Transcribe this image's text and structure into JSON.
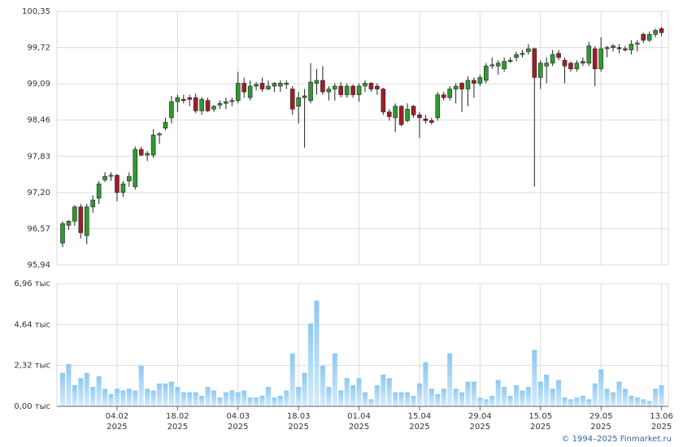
{
  "chart_data": [
    {
      "type": "candlestick",
      "categories": [
        null,
        null,
        null,
        null,
        null,
        null,
        null,
        null,
        null,
        "04.02\n2025",
        null,
        null,
        null,
        null,
        null,
        null,
        null,
        null,
        null,
        "18.02\n2025",
        null,
        null,
        null,
        null,
        null,
        null,
        null,
        null,
        null,
        "04.03\n2025",
        null,
        null,
        null,
        null,
        null,
        null,
        null,
        null,
        null,
        "18.03\n2025",
        null,
        null,
        null,
        null,
        null,
        null,
        null,
        null,
        null,
        "01.04\n2025",
        null,
        null,
        null,
        null,
        null,
        null,
        null,
        null,
        null,
        "15.04\n2025",
        null,
        null,
        null,
        null,
        null,
        null,
        null,
        null,
        null,
        "29.04\n2025",
        null,
        null,
        null,
        null,
        null,
        null,
        null,
        null,
        null,
        "15.05\n2025",
        null,
        null,
        null,
        null,
        null,
        null,
        null,
        null,
        null,
        "29.05\n2025",
        null,
        null,
        null,
        null,
        null,
        null,
        null,
        null,
        null,
        "13.06\n2025"
      ],
      "open": [
        96.32,
        96.63,
        96.7,
        96.95,
        96.45,
        96.95,
        97.1,
        97.42,
        97.48,
        97.5,
        97.2,
        97.4,
        97.3,
        97.95,
        97.85,
        97.85,
        98.2,
        98.32,
        98.5,
        98.78,
        98.82,
        98.85,
        98.85,
        98.62,
        98.8,
        98.65,
        98.72,
        98.75,
        98.78,
        98.8,
        99.1,
        98.85,
        99.05,
        99.1,
        99.0,
        99.05,
        99.05,
        99.08,
        99.0,
        98.7,
        98.85,
        98.8,
        99.1,
        99.15,
        98.95,
        99.0,
        99.05,
        98.9,
        99.05,
        98.9,
        99.05,
        99.1,
        99.05,
        99.0,
        98.6,
        98.5,
        98.7,
        98.45,
        98.7,
        98.55,
        98.48,
        98.45,
        98.5,
        98.9,
        98.85,
        99.0,
        99.1,
        99.0,
        99.15,
        99.1,
        99.15,
        99.4,
        99.4,
        99.35,
        99.48,
        99.55,
        99.6,
        99.65,
        99.7,
        99.2,
        99.4,
        99.45,
        99.62,
        99.5,
        99.45,
        99.35,
        99.45,
        99.45,
        99.7,
        99.35,
        99.7,
        99.72,
        99.72,
        99.7,
        99.68,
        99.78,
        99.95,
        99.85,
        99.95,
        100.05
      ],
      "high": [
        96.7,
        96.72,
        96.98,
        97.0,
        97.0,
        97.15,
        97.4,
        97.55,
        97.55,
        97.52,
        97.4,
        97.55,
        98.0,
        98.0,
        97.92,
        98.3,
        98.25,
        98.5,
        98.88,
        98.9,
        98.9,
        98.9,
        98.92,
        98.86,
        98.85,
        98.72,
        98.8,
        98.85,
        98.85,
        99.3,
        99.2,
        99.15,
        99.12,
        99.2,
        99.15,
        99.12,
        99.15,
        99.15,
        99.05,
        98.95,
        99.0,
        99.45,
        99.35,
        99.4,
        99.05,
        99.1,
        99.12,
        99.1,
        99.08,
        99.1,
        99.15,
        99.12,
        99.1,
        99.02,
        98.65,
        98.75,
        98.72,
        98.75,
        98.72,
        98.6,
        98.55,
        98.5,
        98.95,
        98.95,
        99.05,
        99.1,
        99.12,
        99.22,
        99.2,
        99.25,
        99.45,
        99.55,
        99.5,
        99.55,
        99.55,
        99.65,
        99.68,
        99.78,
        99.72,
        99.5,
        99.55,
        99.68,
        99.68,
        99.55,
        99.48,
        99.5,
        99.55,
        99.82,
        99.75,
        99.9,
        99.75,
        99.78,
        99.78,
        99.75,
        99.85,
        99.85,
        99.98,
        100.0,
        100.05,
        100.08
      ],
      "low": [
        96.25,
        96.55,
        96.62,
        96.4,
        96.3,
        96.85,
        97.0,
        97.38,
        97.4,
        97.05,
        97.12,
        97.3,
        97.25,
        97.83,
        97.75,
        97.8,
        98.05,
        98.28,
        98.4,
        98.6,
        98.75,
        98.7,
        98.58,
        98.55,
        98.6,
        98.6,
        98.65,
        98.65,
        98.7,
        98.75,
        98.85,
        98.8,
        98.98,
        98.95,
        98.98,
        98.95,
        98.95,
        99.0,
        98.55,
        98.4,
        97.98,
        98.75,
        98.9,
        98.9,
        98.8,
        98.8,
        98.85,
        98.85,
        98.85,
        98.78,
        98.95,
        98.95,
        98.9,
        98.55,
        98.45,
        98.25,
        98.35,
        98.42,
        98.5,
        98.15,
        98.4,
        98.38,
        98.45,
        98.8,
        98.8,
        98.75,
        98.6,
        98.7,
        98.85,
        99.05,
        99.1,
        99.35,
        99.25,
        99.3,
        99.45,
        99.48,
        99.55,
        99.6,
        97.3,
        99.0,
        99.1,
        99.4,
        99.5,
        99.1,
        99.3,
        99.3,
        99.4,
        99.4,
        99.05,
        99.3,
        99.55,
        99.65,
        99.62,
        99.65,
        99.6,
        99.65,
        99.8,
        99.82,
        99.9,
        99.92
      ],
      "close": [
        96.66,
        96.7,
        96.95,
        96.5,
        96.95,
        97.07,
        97.35,
        97.48,
        97.5,
        97.2,
        97.35,
        97.48,
        97.95,
        97.85,
        97.88,
        98.2,
        98.22,
        98.42,
        98.78,
        98.85,
        98.8,
        98.82,
        98.62,
        98.82,
        98.62,
        98.7,
        98.75,
        98.78,
        98.8,
        99.1,
        98.95,
        99.05,
        99.08,
        99.0,
        99.05,
        99.1,
        99.1,
        99.1,
        98.65,
        98.85,
        98.88,
        99.12,
        99.15,
        98.95,
        99.0,
        99.05,
        98.9,
        99.05,
        98.9,
        99.05,
        99.1,
        99.0,
        99.0,
        98.6,
        98.52,
        98.7,
        98.38,
        98.65,
        98.55,
        98.5,
        98.45,
        98.42,
        98.9,
        98.85,
        99.0,
        99.05,
        99.0,
        99.15,
        99.1,
        99.2,
        99.4,
        99.42,
        99.45,
        99.48,
        99.5,
        99.6,
        99.62,
        99.7,
        99.2,
        99.45,
        99.45,
        99.6,
        99.55,
        99.4,
        99.35,
        99.45,
        99.48,
        99.75,
        99.35,
        99.7,
        99.72,
        99.75,
        99.7,
        99.68,
        99.78,
        99.8,
        99.85,
        99.95,
        100.02,
        99.98
      ],
      "up_color": "#2f9a2f",
      "down_color": "#a01e28",
      "ylim": [
        95.94,
        100.35
      ],
      "yticks": [
        {
          "value": 95.94,
          "label": "95,94"
        },
        {
          "value": 96.57,
          "label": "96,57"
        },
        {
          "value": 97.2,
          "label": "97,20"
        },
        {
          "value": 97.83,
          "label": "97,83"
        },
        {
          "value": 98.46,
          "label": "98,46"
        },
        {
          "value": 99.09,
          "label": "99,09"
        },
        {
          "value": 99.72,
          "label": "99,72"
        },
        {
          "value": 100.35,
          "label": "100,35"
        }
      ],
      "grid": true
    },
    {
      "type": "bar",
      "values": [
        1.9,
        2.4,
        1.2,
        1.6,
        1.9,
        1.1,
        1.7,
        1.0,
        0.7,
        1.0,
        0.9,
        1.0,
        0.9,
        2.3,
        1.0,
        0.9,
        1.3,
        1.3,
        1.4,
        1.1,
        0.8,
        0.8,
        0.8,
        0.6,
        1.1,
        0.9,
        0.5,
        0.8,
        0.9,
        0.8,
        0.9,
        0.5,
        0.5,
        0.6,
        1.1,
        0.5,
        0.6,
        0.9,
        3.0,
        1.1,
        1.9,
        4.7,
        6.0,
        2.3,
        1.1,
        3.0,
        0.9,
        1.6,
        1.2,
        1.6,
        0.8,
        0.4,
        1.2,
        1.8,
        1.6,
        0.8,
        0.8,
        0.8,
        0.6,
        1.3,
        2.5,
        1.0,
        0.7,
        1.0,
        3.0,
        1.0,
        0.8,
        1.4,
        1.4,
        0.5,
        0.4,
        0.6,
        1.5,
        1.1,
        0.6,
        1.2,
        0.9,
        1.1,
        3.2,
        1.4,
        1.8,
        1.0,
        1.5,
        0.5,
        0.4,
        0.5,
        0.6,
        0.4,
        1.3,
        2.1,
        1.0,
        0.8,
        1.4,
        1.0,
        0.6,
        0.5,
        0.4,
        0.3,
        1.0,
        1.2
      ],
      "ylim": [
        0,
        6.96
      ],
      "yticks": [
        {
          "value": 0,
          "label": "0,00 тыс"
        },
        {
          "value": 2.32,
          "label": "2,32 тыс"
        },
        {
          "value": 4.64,
          "label": "4,64 тыс"
        },
        {
          "value": 6.96,
          "label": "6,96 тыс"
        }
      ],
      "grid": true
    }
  ],
  "footer": "© 1994–2025 Finmarket.ru"
}
